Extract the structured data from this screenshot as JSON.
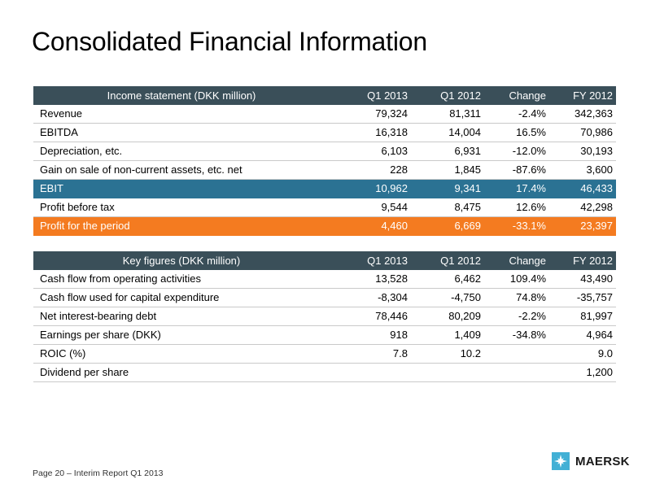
{
  "page": {
    "title": "Consolidated Financial Information"
  },
  "income_table": {
    "headers": [
      "Income statement (DKK million)",
      "Q1 2013",
      "Q1 2012",
      "Change",
      "FY  2012"
    ],
    "rows": [
      [
        "Revenue",
        "79,324",
        "81,311",
        "-2.4%",
        "342,363"
      ],
      [
        "EBITDA",
        "16,318",
        "14,004",
        "16.5%",
        "70,986"
      ],
      [
        "Depreciation, etc.",
        "6,103",
        "6,931",
        "-12.0%",
        "30,193"
      ],
      [
        "Gain on sale of non-current assets, etc. net",
        "228",
        "1,845",
        "-87.6%",
        "3,600"
      ],
      [
        "EBIT",
        "10,962",
        "9,341",
        "17.4%",
        "46,433"
      ],
      [
        "Profit before tax",
        "9,544",
        "8,475",
        "12.6%",
        "42,298"
      ],
      [
        "Profit for the period",
        "4,460",
        "6,669",
        "-33.1%",
        "23,397"
      ]
    ]
  },
  "key_table": {
    "headers": [
      "Key figures (DKK million)",
      "Q1 2013",
      "Q1 2012",
      "Change",
      "FY  2012"
    ],
    "rows": [
      [
        "Cash flow from operating activities",
        "13,528",
        "6,462",
        "109.4%",
        "43,490"
      ],
      [
        "Cash flow used for capital expenditure",
        "-8,304",
        "-4,750",
        "74.8%",
        "-35,757"
      ],
      [
        "Net interest-bearing debt",
        "78,446",
        "80,209",
        "-2.2%",
        "81,997"
      ],
      [
        "Earnings per share (DKK)",
        "918",
        "1,409",
        "-34.8%",
        "4,964"
      ],
      [
        "ROIC (%)",
        "7.8",
        "10.2",
        "",
        "9.0"
      ],
      [
        "Dividend per share",
        "",
        "",
        "",
        "1,200"
      ]
    ]
  },
  "colors": {
    "header_bg": "#3a4f59",
    "ebit_highlight": "#2b7293",
    "profit_highlight": "#f47b20",
    "logo_box": "#42b0d5"
  },
  "footer": {
    "text": "Page 20 – Interim Report Q1 2013"
  },
  "logo": {
    "icon": "star-icon",
    "text": "MAERSK"
  }
}
